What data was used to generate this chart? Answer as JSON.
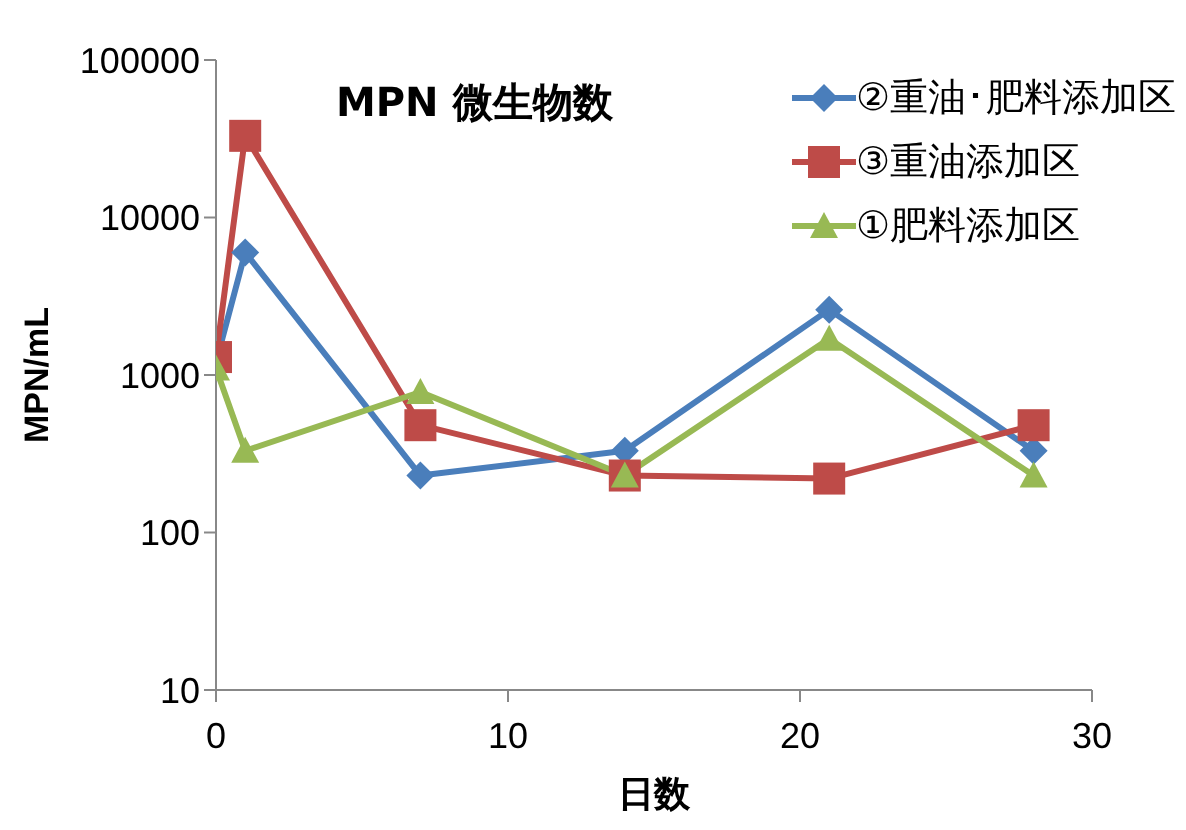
{
  "chart_data": {
    "type": "line",
    "title": "MPN 微生物数",
    "xlabel": "日数",
    "ylabel": "MPN/mL",
    "x": [
      0,
      1,
      7,
      14,
      21,
      28
    ],
    "series": [
      {
        "name": "②重油･肥料添加区",
        "color": "#4a7ebb",
        "marker": "diamond",
        "values": [
          1200,
          6000,
          230,
          330,
          2600,
          330
        ]
      },
      {
        "name": "③重油添加区",
        "color": "#be4b48",
        "marker": "square",
        "values": [
          1300,
          33000,
          480,
          230,
          220,
          480
        ]
      },
      {
        "name": "①肥料添加区",
        "color": "#98b954",
        "marker": "triangle",
        "values": [
          1100,
          330,
          780,
          230,
          1700,
          230
        ]
      }
    ],
    "log": "y",
    "xlim": [
      0,
      30
    ],
    "xticks": [
      0,
      10,
      20,
      30
    ],
    "ylim": [
      10,
      100000
    ],
    "yticks": [
      10,
      100,
      1000,
      10000,
      100000
    ],
    "grid": false,
    "legend": "top right"
  }
}
